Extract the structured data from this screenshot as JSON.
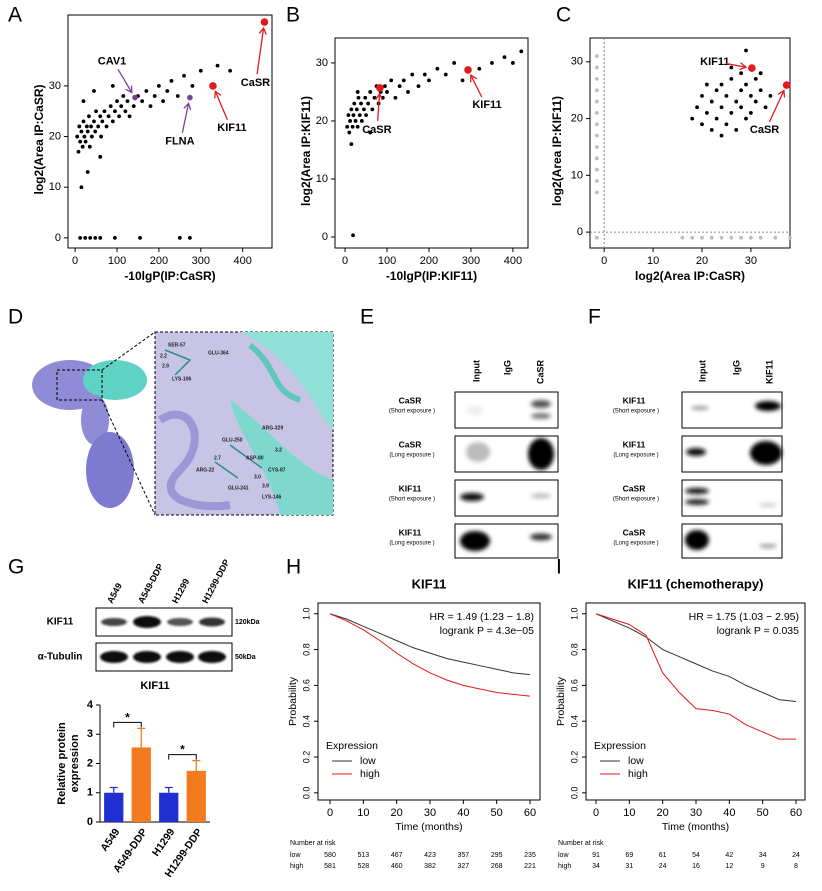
{
  "panel_letters": [
    "A",
    "B",
    "C",
    "D",
    "E",
    "F",
    "G",
    "H",
    "I"
  ],
  "chart_data": [
    {
      "type": "scatter",
      "xlabel": "-10lgP(IP:CaSR)",
      "ylabel": "log2(Area IP:CaSR)",
      "xlim": [
        -17,
        470
      ],
      "ylim": [
        -2,
        44
      ],
      "xticks": [
        0,
        100,
        200,
        300,
        400
      ],
      "yticks": [
        0,
        10,
        20,
        30
      ],
      "series": [
        {
          "color": "#000000",
          "x": [
            5,
            8,
            10,
            12,
            15,
            18,
            20,
            22,
            25,
            28,
            30,
            33,
            35,
            38,
            40,
            45,
            48,
            50,
            55,
            60,
            62,
            65,
            70,
            75,
            80,
            85,
            90,
            95,
            100,
            105,
            110,
            115,
            120,
            125,
            130,
            140,
            150,
            160,
            170,
            180,
            190,
            200,
            210,
            220,
            230,
            245,
            260,
            280,
            300,
            340,
            370,
            15,
            30,
            20,
            45,
            60,
            90,
            12,
            24,
            36,
            48,
            60,
            95,
            155,
            250,
            274
          ],
          "values": [
            20,
            17,
            22,
            19,
            21,
            18,
            23,
            20,
            19,
            22,
            21,
            24,
            18,
            22,
            20,
            23,
            21,
            25,
            22,
            24,
            20,
            23,
            25,
            22,
            24,
            26,
            23,
            25,
            27,
            24,
            26,
            28,
            25,
            27,
            24,
            26,
            28,
            27,
            29,
            26,
            28,
            30,
            27,
            29,
            31,
            28,
            32,
            30,
            33,
            34,
            33,
            10,
            13,
            27,
            29,
            16,
            30,
            0,
            0,
            0,
            0,
            0,
            0,
            0,
            0,
            0
          ]
        }
      ],
      "annotations": [
        {
          "label": "CAV1",
          "x": 143,
          "y": 27.7,
          "color": "#7b3f9e"
        },
        {
          "label": "FLNA",
          "x": 274,
          "y": 27.7,
          "color": "#7b3f9e"
        },
        {
          "label": "KIF11",
          "x": 329,
          "y": 30,
          "color": "#e31a1c"
        },
        {
          "label": "CaSR",
          "x": 452,
          "y": 42.6,
          "color": "#e31a1c"
        }
      ]
    },
    {
      "type": "scatter",
      "xlabel": "-10lgP(IP:KIF11)",
      "ylabel": "log2(Area IP:KIF11)",
      "xlim": [
        -24,
        436
      ],
      "ylim": [
        -1.9,
        34.3
      ],
      "xticks": [
        0,
        100,
        200,
        300,
        400
      ],
      "yticks": [
        0,
        10,
        20,
        30
      ],
      "series": [
        {
          "color": "#000000",
          "x": [
            5,
            8,
            10,
            12,
            15,
            18,
            20,
            22,
            25,
            28,
            30,
            32,
            35,
            38,
            40,
            45,
            48,
            50,
            55,
            60,
            65,
            70,
            75,
            80,
            85,
            90,
            95,
            100,
            110,
            120,
            130,
            140,
            150,
            160,
            175,
            190,
            200,
            220,
            240,
            260,
            280,
            320,
            350,
            380,
            400,
            420,
            15,
            30,
            60,
            19
          ],
          "values": [
            19,
            21,
            18,
            20,
            22,
            19,
            21,
            23,
            20,
            22,
            19,
            24,
            21,
            23,
            20,
            22,
            24,
            21,
            23,
            25,
            22,
            24,
            26,
            23,
            25,
            24,
            26,
            25,
            27,
            24,
            26,
            27,
            25,
            28,
            26,
            28,
            27,
            29,
            28,
            30,
            27,
            29,
            30,
            31,
            30,
            32,
            16,
            25,
            18,
            0.3
          ]
        }
      ],
      "annotations": [
        {
          "label": "CaSR",
          "x": 83,
          "y": 25.7,
          "color": "#e31a1c"
        },
        {
          "label": "KIF11",
          "x": 293,
          "y": 28.8,
          "color": "#e31a1c"
        }
      ]
    },
    {
      "type": "scatter",
      "xlabel": "log2(Area IP:CaSR)",
      "ylabel": "log2(Area IP:KIF11)",
      "xlim": [
        -2.9,
        38
      ],
      "ylim": [
        -2.8,
        34.2
      ],
      "xticks": [
        0,
        10,
        20,
        30
      ],
      "yticks": [
        0,
        10,
        20,
        30
      ],
      "reference_lines": {
        "x": 0,
        "y": 0
      },
      "series": [
        {
          "color": "#000000",
          "x": [
            18,
            19,
            20,
            20,
            21,
            22,
            22,
            23,
            23,
            24,
            24,
            25,
            25,
            26,
            26,
            27,
            27,
            28,
            28,
            29,
            29,
            30,
            30,
            31,
            31,
            32,
            33,
            26,
            24,
            29,
            21,
            28,
            32,
            34
          ],
          "values": [
            20,
            22,
            19,
            24,
            21,
            23,
            18,
            25,
            20,
            22,
            26,
            19,
            24,
            21,
            27,
            23,
            18,
            25,
            22,
            20,
            26,
            24,
            21,
            27,
            23,
            25,
            22,
            29,
            17,
            32,
            26,
            28,
            28,
            24
          ]
        },
        {
          "color": "#bdbdbd",
          "x": [
            -1.5,
            -1.5,
            -1.5,
            -1.5,
            -1.5,
            -1.5,
            -1.5,
            -1.5,
            -1.5,
            -1.5,
            -1.5,
            -1.5,
            -1.5,
            16,
            18,
            20,
            22,
            24,
            26,
            28,
            30,
            32,
            35,
            38,
            -1.5
          ],
          "values": [
            7,
            9,
            11,
            13,
            15,
            17,
            19,
            21,
            23,
            25,
            27,
            29,
            31,
            -1,
            -1,
            -1,
            -1,
            -1,
            -1,
            -1,
            -1,
            -1,
            -1,
            -1,
            -1
          ]
        }
      ],
      "annotations": [
        {
          "label": "KIF11",
          "x": 30.2,
          "y": 28.9,
          "color": "#e31a1c"
        },
        {
          "label": "CaSR",
          "x": 37.3,
          "y": 25.9,
          "color": "#e31a1c"
        }
      ]
    },
    {
      "type": "bar",
      "title": "KIF11",
      "ylabel": [
        "Relative protein",
        "expression"
      ],
      "categories": [
        "A549",
        "A549-DDP",
        "H1299",
        "H1299-DDP"
      ],
      "values": [
        1,
        2.55,
        1,
        1.75
      ],
      "errors": [
        0.18,
        0.65,
        0.18,
        0.35
      ],
      "colors": [
        "#1f2fd1",
        "#f47a20",
        "#1f2fd1",
        "#f47a20"
      ],
      "ylim": [
        0,
        4
      ],
      "yticks": [
        0,
        1,
        2,
        3,
        4
      ],
      "significance": [
        {
          "pair": [
            0,
            1
          ],
          "label": "*"
        },
        {
          "pair": [
            2,
            3
          ],
          "label": "*"
        }
      ]
    },
    {
      "type": "line",
      "title": "KIF11",
      "xlabel": "Time (months)",
      "ylabel": "Probability",
      "xlim": [
        -3.6,
        63
      ],
      "ylim": [
        -0.04,
        1.06
      ],
      "xticks": [
        0,
        10,
        20,
        30,
        40,
        50,
        60
      ],
      "yticks": [
        {
          "value": 0,
          "label": "0.0"
        },
        0.2,
        0.4,
        0.6,
        0.8,
        {
          "value": 1,
          "label": "1.0"
        }
      ],
      "annotations": [
        "HR = 1.49 (1.23 − 1.8)",
        "logrank P = 4.3e−05"
      ],
      "legend_title": "Expression",
      "legend": "bottom-left",
      "x": [
        0,
        5,
        10,
        15,
        20,
        25,
        30,
        35,
        40,
        45,
        50,
        55,
        60
      ],
      "series": [
        {
          "name": "low",
          "color": "#333333",
          "values": [
            1,
            0.97,
            0.93,
            0.89,
            0.85,
            0.81,
            0.78,
            0.75,
            0.73,
            0.71,
            0.69,
            0.67,
            0.66
          ]
        },
        {
          "name": "high",
          "color": "#e0191c",
          "values": [
            1,
            0.96,
            0.91,
            0.85,
            0.78,
            0.72,
            0.67,
            0.63,
            0.6,
            0.58,
            0.56,
            0.55,
            0.54
          ]
        }
      ],
      "risk_table": {
        "title": "Number at risk",
        "x": [
          0,
          10,
          20,
          30,
          40,
          50,
          60
        ],
        "rows": [
          {
            "label": "low",
            "values": [
              580,
              513,
              467,
              423,
              357,
              295,
              235
            ]
          },
          {
            "label": "high",
            "values": [
              581,
              528,
              460,
              382,
              327,
              268,
              221
            ]
          }
        ]
      }
    },
    {
      "type": "line",
      "title": "KIF11  (chemotherapy)",
      "xlabel": "Time (months)",
      "ylabel": "Probability",
      "xlim": [
        -3,
        62.7
      ],
      "ylim": [
        -0.04,
        1.06
      ],
      "xticks": [
        0,
        10,
        20,
        30,
        40,
        50,
        60
      ],
      "yticks": [
        {
          "value": 0,
          "label": "0.0"
        },
        0.2,
        0.4,
        0.6,
        0.8,
        {
          "value": 1,
          "label": "1.0"
        }
      ],
      "annotations": [
        "HR = 1.75 (1.03 − 2.95)",
        "logrank P = 0.035"
      ],
      "legend_title": "Expression",
      "legend": "bottom-left",
      "x": [
        0,
        5,
        10,
        15,
        20,
        25,
        30,
        35,
        40,
        45,
        50,
        55,
        60
      ],
      "series": [
        {
          "name": "low",
          "color": "#333333",
          "values": [
            1,
            0.96,
            0.92,
            0.87,
            0.8,
            0.76,
            0.72,
            0.68,
            0.65,
            0.6,
            0.56,
            0.52,
            0.51
          ]
        },
        {
          "name": "high",
          "color": "#e0191c",
          "values": [
            1,
            0.97,
            0.94,
            0.88,
            0.67,
            0.56,
            0.47,
            0.46,
            0.44,
            0.38,
            0.34,
            0.3,
            0.3
          ]
        }
      ],
      "risk_table": {
        "title": "Number at risk",
        "x": [
          0,
          10,
          20,
          30,
          40,
          50,
          60
        ],
        "rows": [
          {
            "label": "low",
            "values": [
              91,
              69,
              61,
              54,
              42,
              34,
              24
            ]
          },
          {
            "label": "high",
            "values": [
              34,
              31,
              24,
              16,
              12,
              9,
              8
            ]
          }
        ]
      }
    }
  ],
  "structure": {
    "residues": [
      "SER-57",
      "GLU-364",
      "LYS-106",
      "ARG-329",
      "GLU-250",
      "ASP-80",
      "CYS-87",
      "ARG-22",
      "GLU-241",
      "LYS-146"
    ],
    "distances": [
      "2.2",
      "2.9",
      "2.7",
      "3.2",
      "3.0",
      "3.9"
    ]
  },
  "blot_e": {
    "lanes": [
      "Input",
      "IgG",
      "CaSR"
    ],
    "rows": [
      {
        "protein": "CaSR",
        "exposure": "(Short exposure )"
      },
      {
        "protein": "CaSR",
        "exposure": "(Long exposure )"
      },
      {
        "protein": "KIF11",
        "exposure": "(Short exposure )"
      },
      {
        "protein": "KIF11",
        "exposure": "(Long exposure )"
      }
    ]
  },
  "blot_f": {
    "lanes": [
      "Input",
      "IgG",
      "KIF11"
    ],
    "rows": [
      {
        "protein": "KIF11",
        "exposure": "(Short exposure )"
      },
      {
        "protein": "KIF11",
        "exposure": "(Long exposure )"
      },
      {
        "protein": "CaSR",
        "exposure": "(Short exposure )"
      },
      {
        "protein": "CaSR",
        "exposure": "(Long exposure )"
      }
    ]
  },
  "blot_g": {
    "lanes": [
      "A549",
      "A549-DDP",
      "H1299",
      "H1299-DDP"
    ],
    "rows": [
      {
        "protein": "KIF11",
        "size": "120kDa"
      },
      {
        "protein": "α-Tubulin",
        "size": "50kDa"
      }
    ]
  }
}
